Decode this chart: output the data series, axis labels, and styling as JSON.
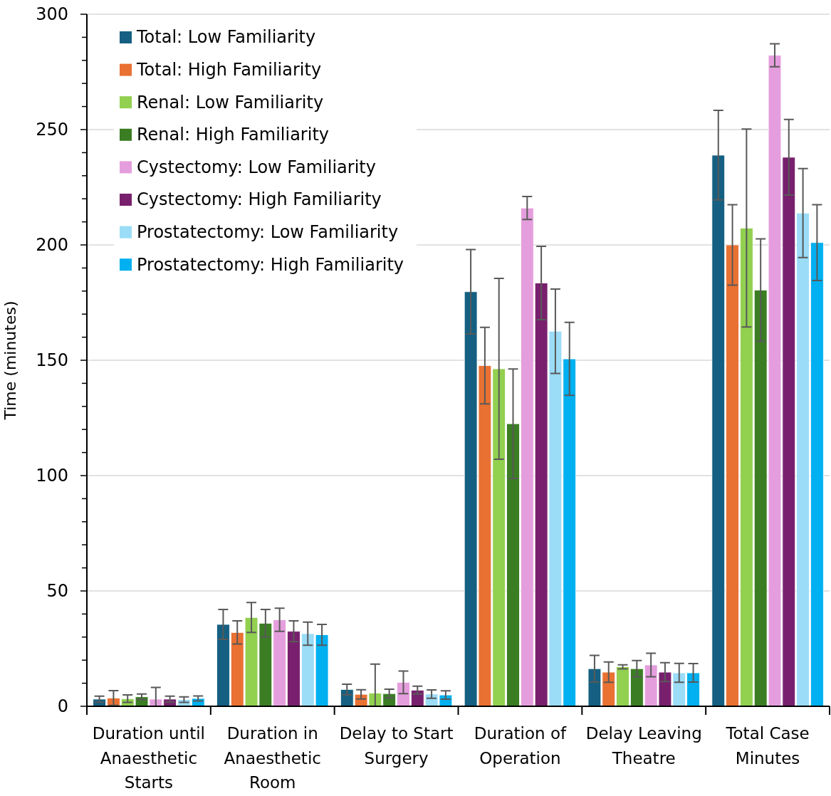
{
  "chart_data": {
    "type": "bar",
    "ylabel": "Time (minutes)",
    "categories": [
      "Duration until Anaesthetic Starts",
      "Duration in Anaesthetic Room",
      "Delay to Start Surgery",
      "Duration of Operation",
      "Delay Leaving Theatre",
      "Total Case Minutes"
    ],
    "ylim": [
      0,
      300
    ],
    "yticks": [
      0,
      {
        "value": 10,
        "label": null
      },
      {
        "value": 20,
        "label": null
      },
      {
        "value": 30,
        "label": null
      },
      {
        "value": 40,
        "label": null
      },
      50,
      {
        "value": 60,
        "label": null
      },
      {
        "value": 70,
        "label": null
      },
      {
        "value": 80,
        "label": null
      },
      {
        "value": 90,
        "label": null
      },
      100,
      {
        "value": 110,
        "label": null
      },
      {
        "value": 120,
        "label": null
      },
      {
        "value": 130,
        "label": null
      },
      {
        "value": 140,
        "label": null
      },
      150,
      {
        "value": 160,
        "label": null
      },
      {
        "value": 170,
        "label": null
      },
      {
        "value": 180,
        "label": null
      },
      {
        "value": 190,
        "label": null
      },
      200,
      {
        "value": 210,
        "label": null
      },
      {
        "value": 220,
        "label": null
      },
      {
        "value": 230,
        "label": null
      },
      {
        "value": 240,
        "label": null
      },
      250,
      {
        "value": 260,
        "label": null
      },
      {
        "value": 270,
        "label": null
      },
      {
        "value": 280,
        "label": null
      },
      {
        "value": 290,
        "label": null
      },
      300
    ],
    "grid": "y",
    "legend": "top left",
    "series": [
      {
        "name": "Total: Low Familiarity",
        "color": "#156082",
        "values": [
          3.1,
          35.5,
          7.3,
          179.7,
          16.3,
          238.9
        ],
        "errors": [
          1.3,
          6.5,
          2.3,
          18.3,
          5.8,
          19.4
        ]
      },
      {
        "name": "Total: High Familiarity",
        "color": "#e97132",
        "values": [
          3.6,
          32,
          5.2,
          147.7,
          14.8,
          200
        ],
        "errors": [
          3.2,
          5,
          2,
          16.6,
          4.4,
          17.4
        ]
      },
      {
        "name": "Renal: Low Familiarity",
        "color": "#92d050",
        "values": [
          3.3,
          38.5,
          5.7,
          146.3,
          17.1,
          207.3
        ],
        "errors": [
          1.6,
          6.5,
          [
            0,
            18.3
          ],
          39.2,
          0.9,
          42.9
        ]
      },
      {
        "name": "Renal: High Familiarity",
        "color": "#3b7d23",
        "values": [
          4.1,
          36,
          5.5,
          122.5,
          16.3,
          180.4
        ],
        "errors": [
          1.2,
          6,
          1.9,
          23.7,
          3.5,
          22.2
        ]
      },
      {
        "name": "Cystectomy: Low Familiarity",
        "color": "#e59edd",
        "values": [
          3.1,
          37.5,
          10.4,
          216,
          17.9,
          282.2
        ],
        "errors": [
          [
            0,
            8.2
          ],
          5,
          4.9,
          5,
          5.1,
          5
        ]
      },
      {
        "name": "Cystectomy: High Familiarity",
        "color": "#78206e",
        "values": [
          3.1,
          32.5,
          7,
          183.5,
          14.8,
          238
        ],
        "errors": [
          1.3,
          4.5,
          1.7,
          15.9,
          4.1,
          16.4
        ]
      },
      {
        "name": "Prostatectomy: Low Familiarity",
        "color": "#9bdcf7",
        "values": [
          2.9,
          31.5,
          5.3,
          162.6,
          14.5,
          213.8
        ],
        "errors": [
          1.2,
          5,
          1.8,
          18.3,
          4.1,
          19.3
        ]
      },
      {
        "name": "Prostatectomy: High Familiarity",
        "color": "#00b0f0",
        "values": [
          3.4,
          31,
          4.9,
          150.6,
          14.5,
          201
        ],
        "errors": [
          1.1,
          4.5,
          1.8,
          15.8,
          4,
          16.4
        ]
      }
    ]
  }
}
